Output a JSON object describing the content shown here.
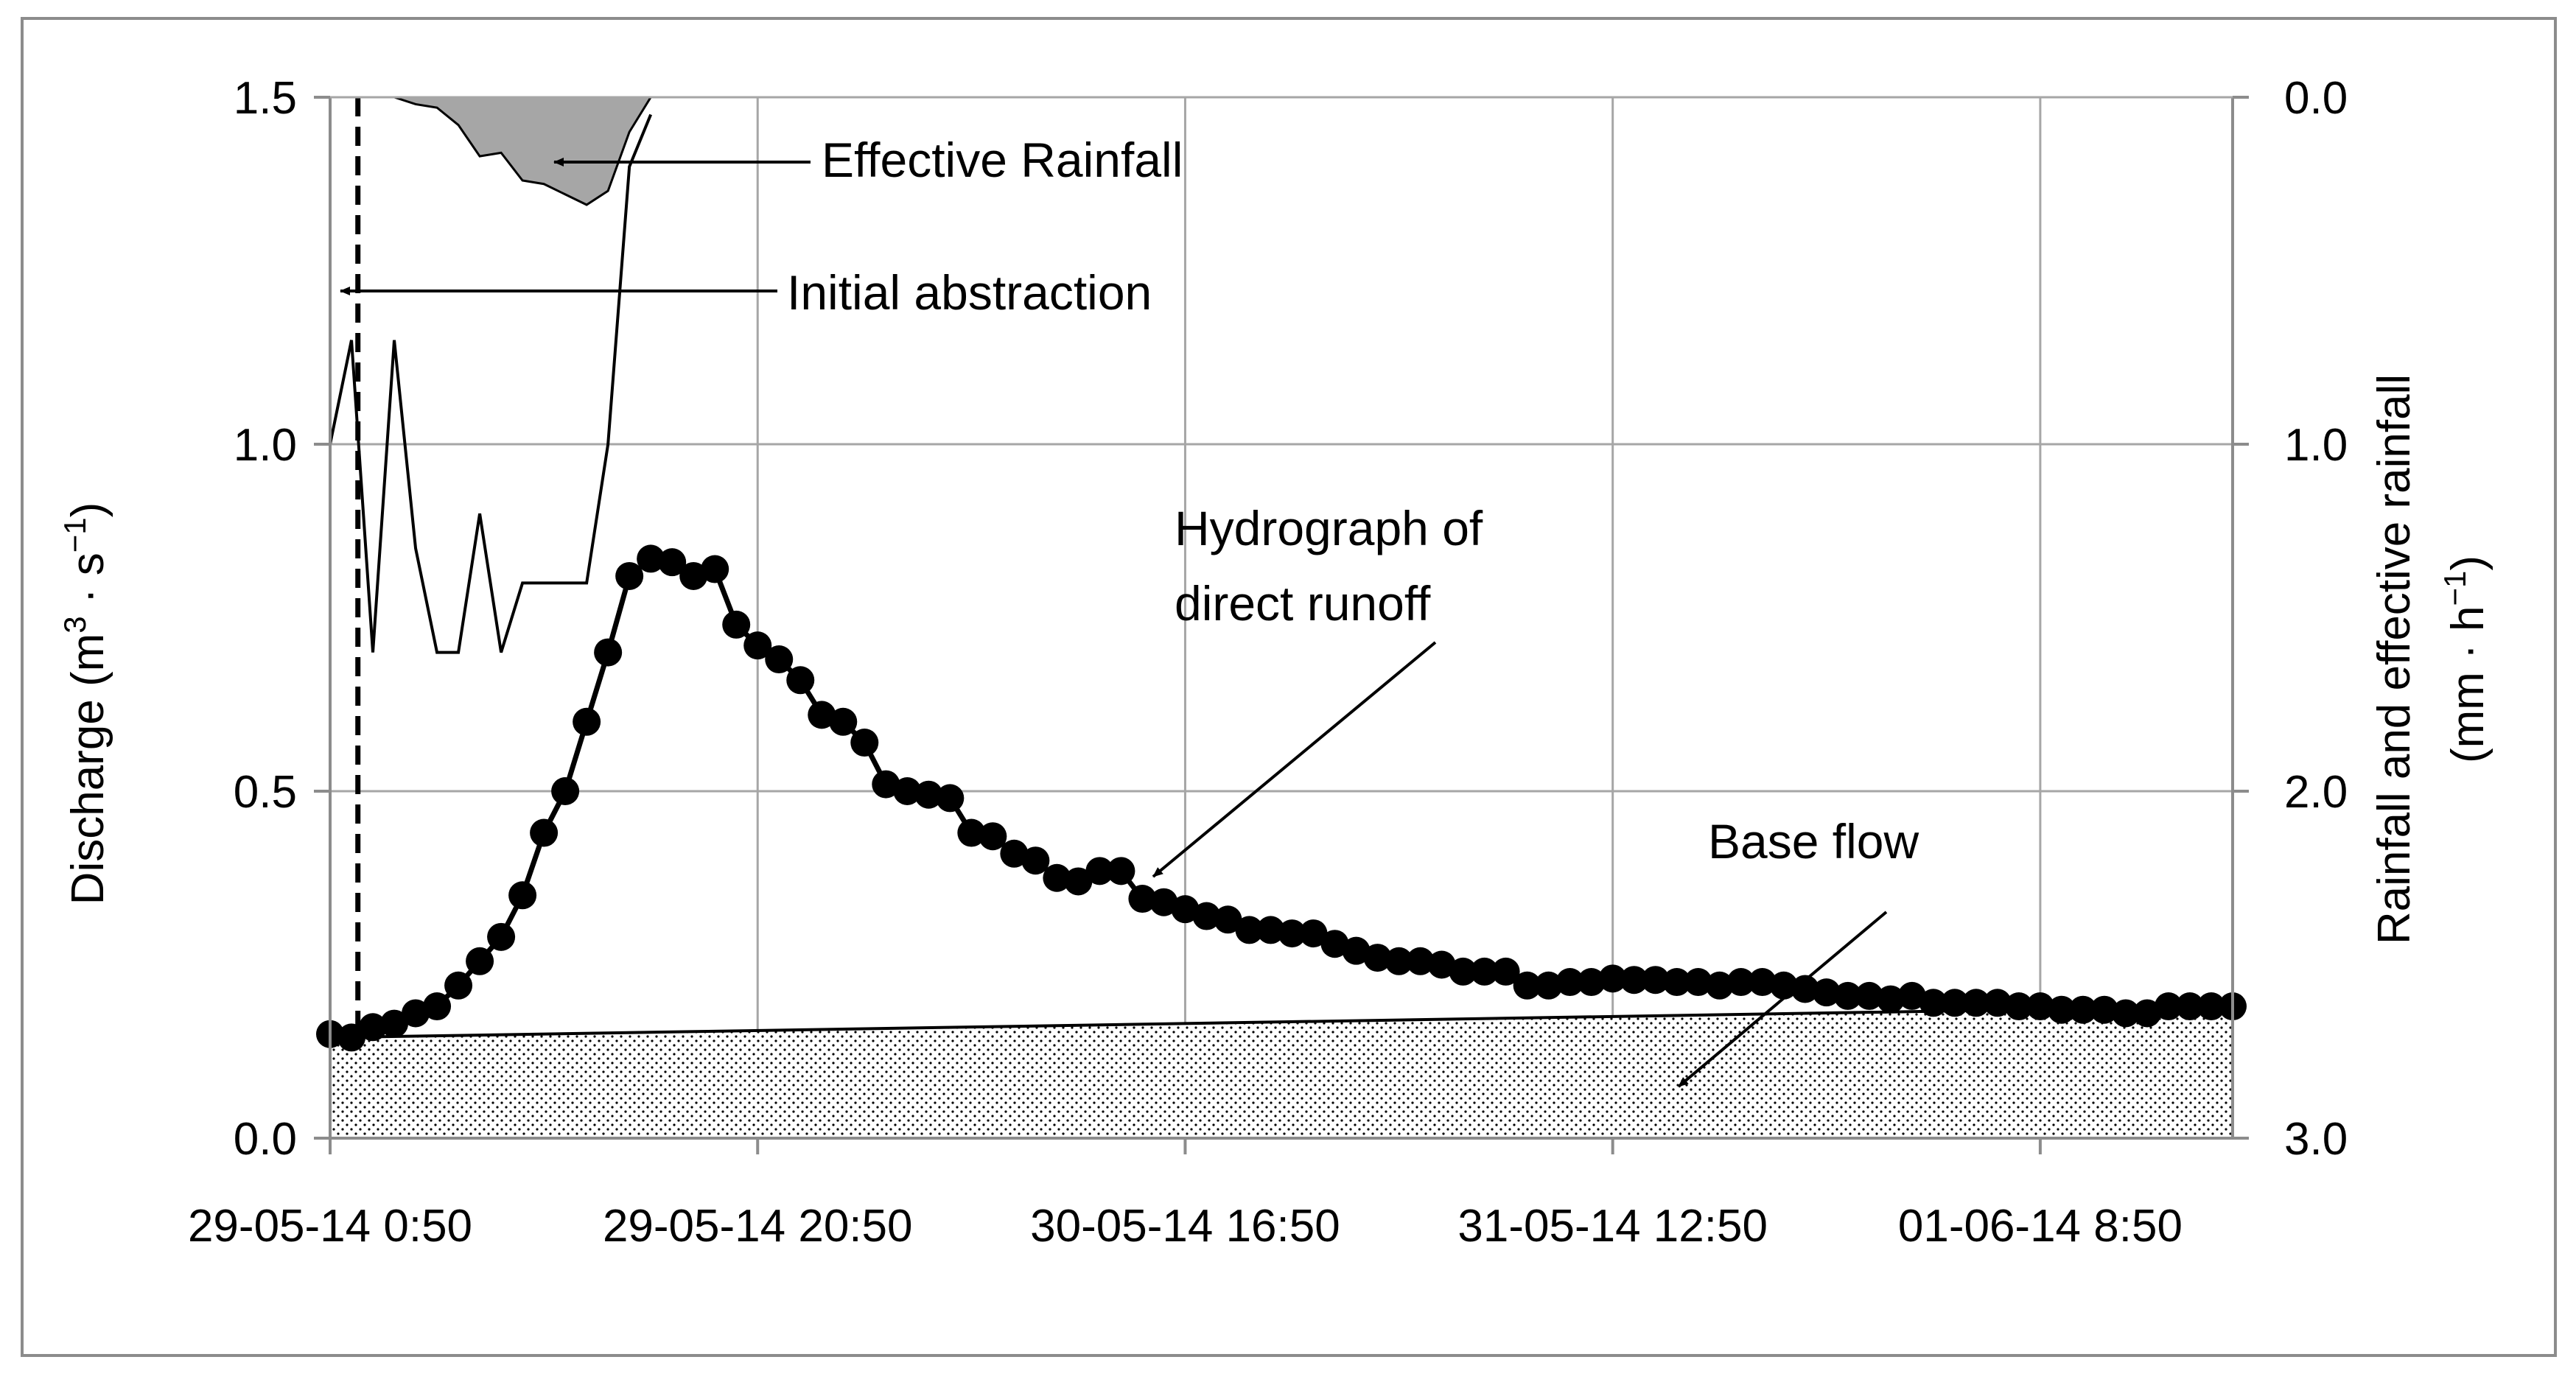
{
  "chart_data": {
    "type": "line",
    "title": "",
    "xlabel": "",
    "x_tick_labels": [
      "29-05-14 0:50",
      "29-05-14 20:50",
      "30-05-14 16:50",
      "31-05-14 12:50",
      "01-06-14 8:50"
    ],
    "x_tick_hours": [
      0,
      20,
      40,
      60,
      80
    ],
    "x_range_hours": [
      0,
      89
    ],
    "left_axis": {
      "label_main": "Discharge (m",
      "label_sup1": "3",
      "label_mid": " · s",
      "label_sup2": "−1",
      "label_end": ")",
      "ylim": [
        0,
        1.5
      ],
      "ticks": [
        "0.0",
        "0.5",
        "1.0",
        "1.5"
      ],
      "tick_values": [
        0,
        0.5,
        1.0,
        1.5
      ]
    },
    "right_axis": {
      "label_line1": "Rainfall and effective rainfall",
      "label_line2_main": "(mm · h",
      "label_line2_sup": "−1",
      "label_line2_end": ")",
      "ylim_inverted": [
        0,
        3.0
      ],
      "ticks": [
        "0.0",
        "1.0",
        "2.0",
        "3.0"
      ],
      "tick_values": [
        0,
        1.0,
        2.0,
        3.0
      ]
    },
    "series": [
      {
        "name": "Direct runoff hydrograph",
        "axis": "left",
        "style": "line-with-markers",
        "x_hours": [
          0,
          1,
          2,
          3,
          4,
          5,
          6,
          7,
          8,
          9,
          10,
          11,
          12,
          13,
          14,
          15,
          16,
          17,
          18,
          19,
          20,
          21,
          22,
          23,
          24,
          25,
          26,
          27,
          28,
          29,
          30,
          31,
          32,
          33,
          34,
          35,
          36,
          37,
          38,
          39,
          40,
          41,
          42,
          43,
          44,
          45,
          46,
          47,
          48,
          49,
          50,
          51,
          52,
          53,
          54,
          55,
          56,
          57,
          58,
          59,
          60,
          61,
          62,
          63,
          64,
          65,
          66,
          67,
          68,
          69,
          70,
          71,
          72,
          73,
          74,
          75,
          76,
          77,
          78,
          79,
          80,
          81,
          82,
          83,
          84,
          85,
          86,
          87,
          88,
          89
        ],
        "values": [
          0.15,
          0.145,
          0.16,
          0.165,
          0.18,
          0.19,
          0.22,
          0.255,
          0.29,
          0.35,
          0.44,
          0.5,
          0.6,
          0.7,
          0.81,
          0.835,
          0.83,
          0.81,
          0.82,
          0.74,
          0.71,
          0.69,
          0.66,
          0.61,
          0.6,
          0.57,
          0.51,
          0.5,
          0.495,
          0.49,
          0.44,
          0.435,
          0.41,
          0.4,
          0.375,
          0.37,
          0.385,
          0.385,
          0.345,
          0.34,
          0.33,
          0.32,
          0.315,
          0.3,
          0.3,
          0.295,
          0.295,
          0.28,
          0.27,
          0.26,
          0.255,
          0.255,
          0.25,
          0.24,
          0.24,
          0.24,
          0.22,
          0.22,
          0.225,
          0.225,
          0.23,
          0.228,
          0.228,
          0.225,
          0.225,
          0.22,
          0.225,
          0.225,
          0.22,
          0.215,
          0.21,
          0.205,
          0.205,
          0.2,
          0.205,
          0.195,
          0.195,
          0.195,
          0.195,
          0.19,
          0.19,
          0.185,
          0.185,
          0.185,
          0.18,
          0.18,
          0.19,
          0.19,
          0.19,
          0.19
        ]
      },
      {
        "name": "Rainfall",
        "axis": "right",
        "style": "line",
        "x_hours": [
          0,
          1,
          2,
          3,
          4,
          5,
          6,
          7,
          8,
          9,
          10,
          11,
          12,
          13,
          14,
          15
        ],
        "values": [
          1.0,
          0.7,
          1.6,
          0.7,
          1.3,
          1.6,
          1.6,
          1.2,
          1.6,
          1.4,
          1.4,
          1.4,
          1.4,
          1.0,
          0.2,
          0.05
        ]
      },
      {
        "name": "Effective rainfall",
        "axis": "right",
        "style": "filled-area",
        "x_hours": [
          3,
          4,
          5,
          6,
          7,
          8,
          9,
          10,
          11,
          12,
          13,
          14,
          15
        ],
        "values": [
          0.0,
          0.02,
          0.03,
          0.08,
          0.17,
          0.16,
          0.24,
          0.25,
          0.28,
          0.31,
          0.27,
          0.1,
          0.0
        ]
      },
      {
        "name": "Base flow",
        "axis": "left",
        "style": "dotted-area",
        "x_hours": [
          0,
          89
        ],
        "values": [
          0.145,
          0.19
        ]
      }
    ],
    "initial_abstraction_hour": 1.3,
    "annotations": [
      {
        "text": "Effective Rainfall"
      },
      {
        "text": "Initial abstraction"
      },
      {
        "text": "Hydrograph of"
      },
      {
        "text": "direct runoff"
      },
      {
        "text": "Base flow"
      }
    ],
    "grid": true,
    "legend": "none"
  }
}
